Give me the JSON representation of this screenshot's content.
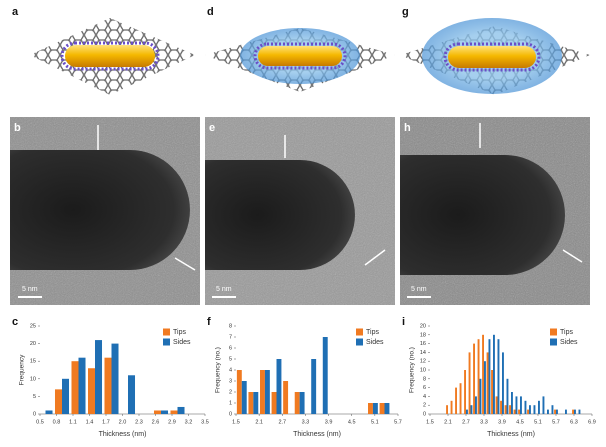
{
  "panels": {
    "labels": [
      "a",
      "d",
      "g",
      "b",
      "e",
      "h",
      "c",
      "f",
      "i"
    ],
    "scale_bars": [
      "5 nm",
      "5 nm",
      "5 nm"
    ]
  },
  "chart_data": [
    {
      "type": "bar",
      "xlabel": "Thickness (nm)",
      "ylabel": "Frequency",
      "x": [
        0.6,
        0.9,
        1.2,
        1.5,
        1.8,
        2.1,
        2.7,
        3.0
      ],
      "series": [
        {
          "name": "Tips",
          "color": "#f07a21",
          "values": [
            0,
            7,
            15,
            13,
            16,
            0,
            1,
            1
          ]
        },
        {
          "name": "Sides",
          "color": "#1f6fb4",
          "values": [
            1,
            10,
            16,
            21,
            20,
            11,
            1,
            2
          ]
        }
      ],
      "xlim": [
        0.5,
        3.5
      ],
      "xticks": [
        0.5,
        0.8,
        1.1,
        1.4,
        1.7,
        {
          "value": 2,
          "label": "2.0"
        },
        2.3,
        2.6,
        2.9,
        3.2,
        3.5
      ],
      "ylim": [
        0,
        25
      ],
      "yticks": [
        0,
        5,
        10,
        15,
        20,
        25
      ],
      "legend": "upper right"
    },
    {
      "type": "bar",
      "xlabel": "Thickness (nm)",
      "ylabel": "Frequency (no.)",
      "x": [
        1.65,
        1.95,
        2.25,
        2.55,
        2.85,
        3.15,
        3.45,
        3.75,
        5.05,
        5.35
      ],
      "series": [
        {
          "name": "Tips",
          "color": "#f07a21",
          "values": [
            4,
            2,
            4,
            2,
            3,
            2,
            0,
            0,
            1,
            1
          ]
        },
        {
          "name": "Sides",
          "color": "#1f6fb4",
          "values": [
            3,
            2,
            4,
            5,
            0,
            2,
            5,
            7,
            1,
            1
          ]
        }
      ],
      "xlim": [
        1.5,
        5.7
      ],
      "xticks": [
        1.5,
        2.1,
        2.7,
        3.3,
        3.9,
        4.5,
        5.1,
        5.7
      ],
      "ylim": [
        0,
        8
      ],
      "yticks": [
        0,
        1,
        2,
        3,
        4,
        5,
        6,
        7,
        8
      ],
      "legend": "upper right"
    },
    {
      "type": "bar",
      "xlabel": "Thickness (nm)",
      "ylabel": "Frequency (no.)",
      "x": [
        2.1,
        2.25,
        2.4,
        2.55,
        2.7,
        2.85,
        3.0,
        3.15,
        3.3,
        3.45,
        3.6,
        3.75,
        3.9,
        4.05,
        4.2,
        4.35,
        4.5,
        4.65,
        4.8,
        4.95,
        5.1,
        5.25,
        5.4,
        5.55,
        5.7,
        6.0,
        6.3,
        6.45
      ],
      "series": [
        {
          "name": "Tips",
          "color": "#f07a21",
          "values": [
            2,
            3,
            6,
            7,
            10,
            14,
            16,
            17,
            18,
            14,
            10,
            4,
            3,
            2,
            2,
            1,
            1,
            0,
            1,
            0,
            0,
            0,
            0,
            0,
            1,
            0,
            1,
            0
          ]
        },
        {
          "name": "Sides",
          "color": "#1f6fb4",
          "values": [
            0,
            0,
            0,
            0,
            1,
            2,
            4,
            8,
            12,
            17,
            18,
            17,
            14,
            8,
            5,
            4,
            4,
            3,
            2,
            2,
            3,
            4,
            1,
            2,
            1,
            1,
            1,
            1
          ]
        }
      ],
      "xlim": [
        1.5,
        6.9
      ],
      "xticks": [
        1.5,
        2.1,
        2.7,
        3.3,
        3.9,
        4.5,
        5.1,
        5.7,
        6.3,
        6.9
      ],
      "ylim": [
        0,
        20
      ],
      "yticks": [
        0,
        2,
        4,
        6,
        8,
        10,
        12,
        14,
        16,
        18,
        20
      ],
      "legend": "upper right"
    }
  ]
}
